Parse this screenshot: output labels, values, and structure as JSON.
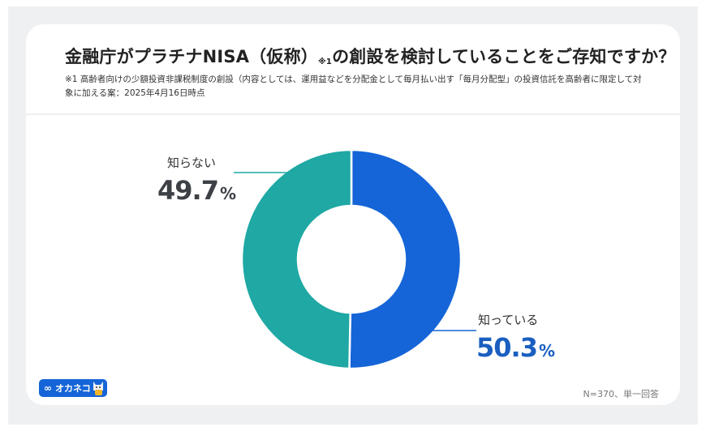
{
  "header": {
    "title_main": "金融庁がプラチナNISA（仮称）",
    "title_mark": "※1",
    "title_tail": "の創設を検討していることをご存知ですか？",
    "note": "※1 高齢者向けの少額投資非課税制度の創設（内容としては、運用益などを分配金として毎月払い出す「毎月分配型」の投資信託を高齢者に限定して対象に加える案：2025年4月16日時点"
  },
  "chart_data": {
    "type": "pie",
    "subtype": "donut",
    "title": "金融庁がプラチナNISA（仮称）※1の創設を検討していることをご存知ですか？",
    "categories": [
      "知っている",
      "知らない"
    ],
    "values": [
      50.3,
      49.7
    ],
    "unit": "%",
    "colors": [
      "#1565d8",
      "#1fa8a4"
    ],
    "start_angle": "12 o'clock, clockwise",
    "sample_note": "N=370、単一回答"
  },
  "labels": {
    "known": {
      "name": "知っている",
      "value": "50.3",
      "pct": "%",
      "color": "#1a5fc0"
    },
    "unknown": {
      "name": "知らない",
      "value": "49.7",
      "pct": "%",
      "color": "#3d4146"
    }
  },
  "footer": {
    "logo_text": "オカネコ",
    "logo_icon": "infinity-icon",
    "sample": "N=370、単一回答"
  }
}
